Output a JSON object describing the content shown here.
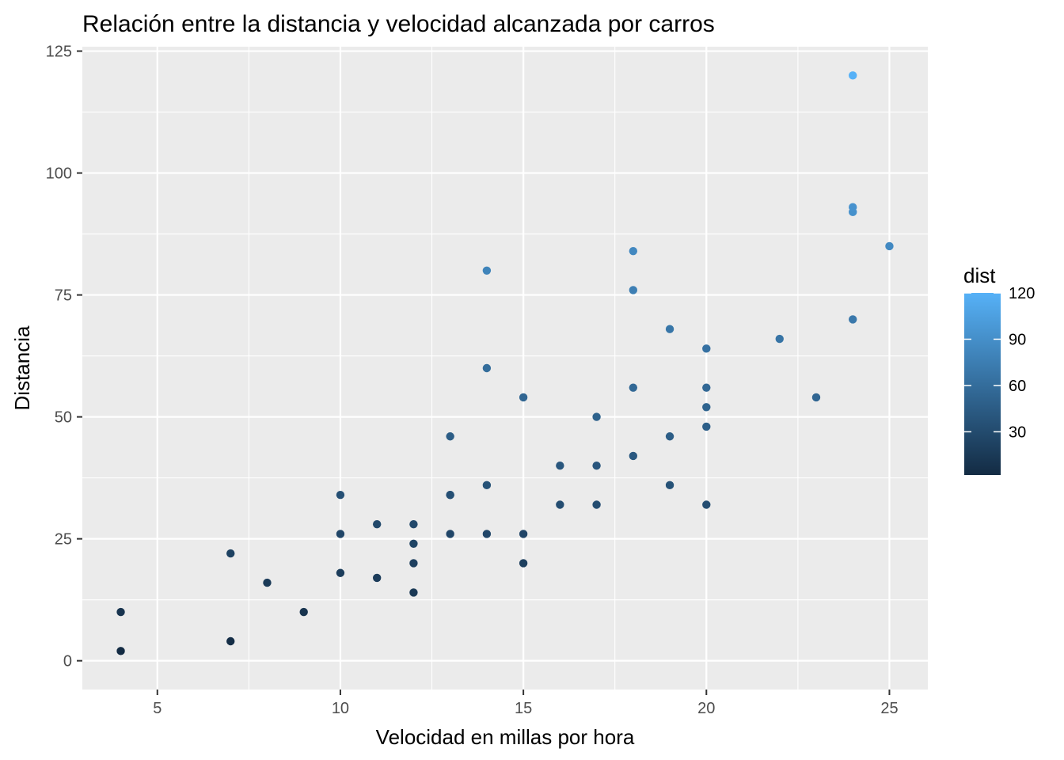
{
  "chart_data": {
    "type": "scatter",
    "title": "Relación entre la distancia y velocidad alcanzada por carros",
    "xlabel": "Velocidad en millas por hora",
    "ylabel": "Distancia",
    "xlim": [
      2.95,
      26.05
    ],
    "ylim": [
      -5.9,
      125.9
    ],
    "x_ticks": [
      5,
      10,
      15,
      20,
      25
    ],
    "y_ticks": [
      0,
      25,
      50,
      75,
      100,
      125
    ],
    "x_tick_labels": [
      "5",
      "10",
      "15",
      "20",
      "25"
    ],
    "y_tick_labels": [
      "0",
      "25",
      "50",
      "75",
      "100",
      "125"
    ],
    "grid": true,
    "panel_background": "#ebebeb",
    "grid_color": "#ffffff",
    "color_variable": "dist",
    "color_scale": {
      "low": "#132b43",
      "high": "#56b1f7",
      "min": 2,
      "max": 120
    },
    "legend": {
      "title": "dist",
      "position": "right",
      "breaks": [
        30,
        60,
        90,
        120
      ],
      "labels": [
        "30",
        "60",
        "90",
        "120"
      ]
    },
    "points": [
      {
        "x": 4,
        "y": 2
      },
      {
        "x": 4,
        "y": 10
      },
      {
        "x": 7,
        "y": 4
      },
      {
        "x": 7,
        "y": 22
      },
      {
        "x": 8,
        "y": 16
      },
      {
        "x": 9,
        "y": 10
      },
      {
        "x": 10,
        "y": 18
      },
      {
        "x": 10,
        "y": 26
      },
      {
        "x": 10,
        "y": 34
      },
      {
        "x": 11,
        "y": 17
      },
      {
        "x": 11,
        "y": 28
      },
      {
        "x": 12,
        "y": 14
      },
      {
        "x": 12,
        "y": 20
      },
      {
        "x": 12,
        "y": 24
      },
      {
        "x": 12,
        "y": 28
      },
      {
        "x": 13,
        "y": 26
      },
      {
        "x": 13,
        "y": 34
      },
      {
        "x": 13,
        "y": 34
      },
      {
        "x": 13,
        "y": 46
      },
      {
        "x": 14,
        "y": 26
      },
      {
        "x": 14,
        "y": 36
      },
      {
        "x": 14,
        "y": 60
      },
      {
        "x": 14,
        "y": 80
      },
      {
        "x": 15,
        "y": 20
      },
      {
        "x": 15,
        "y": 26
      },
      {
        "x": 15,
        "y": 54
      },
      {
        "x": 16,
        "y": 32
      },
      {
        "x": 16,
        "y": 40
      },
      {
        "x": 17,
        "y": 32
      },
      {
        "x": 17,
        "y": 40
      },
      {
        "x": 17,
        "y": 50
      },
      {
        "x": 18,
        "y": 42
      },
      {
        "x": 18,
        "y": 56
      },
      {
        "x": 18,
        "y": 76
      },
      {
        "x": 18,
        "y": 84
      },
      {
        "x": 19,
        "y": 36
      },
      {
        "x": 19,
        "y": 46
      },
      {
        "x": 19,
        "y": 68
      },
      {
        "x": 20,
        "y": 32
      },
      {
        "x": 20,
        "y": 48
      },
      {
        "x": 20,
        "y": 52
      },
      {
        "x": 20,
        "y": 56
      },
      {
        "x": 20,
        "y": 64
      },
      {
        "x": 22,
        "y": 66
      },
      {
        "x": 23,
        "y": 54
      },
      {
        "x": 24,
        "y": 70
      },
      {
        "x": 24,
        "y": 92
      },
      {
        "x": 24,
        "y": 93
      },
      {
        "x": 24,
        "y": 120
      },
      {
        "x": 25,
        "y": 85
      }
    ]
  }
}
